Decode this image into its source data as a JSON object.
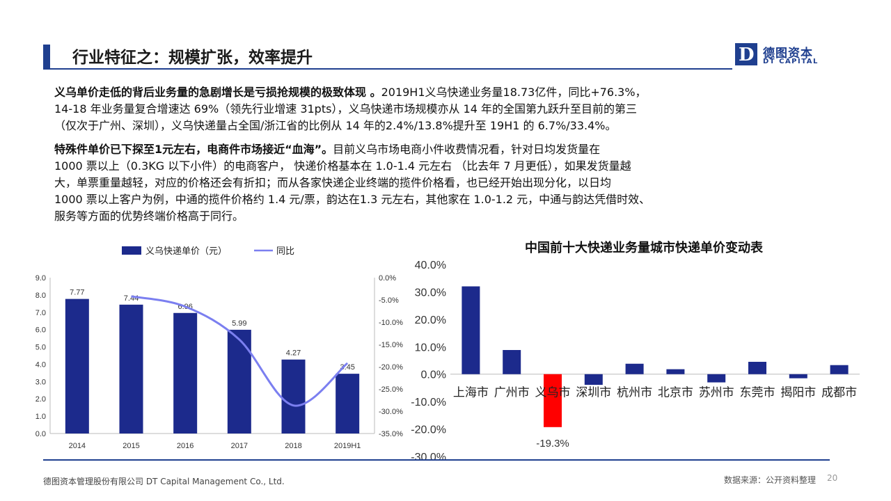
{
  "header": {
    "title": "行业特征之：规模扩张，效率提升",
    "logo_cn": "德图资本",
    "logo_en": "DT CAPITAL",
    "logo_letter": "D"
  },
  "paragraphs": [
    {
      "bold": "义乌单价走低的背后业务量的急剧增长是亏损抢规模的极致体现 。",
      "lines": [
        "2019H1义乌快递业务量18.73亿件，同比+76.3%，",
        "14-18 年业务量复合增速达 69%（领先行业增速 31pts），义乌快递市场规模亦从 14 年的全国第九跃升至目前的第三",
        "（仅次于广州、深圳），义乌快递量占全国/浙江省的比例从 14 年的2.4%/13.8%提升至 19H1 的 6.7%/33.4%。"
      ]
    },
    {
      "bold": "特殊件单价已下探至1元左右，电商件市场接近“血海”。",
      "lines": [
        "目前义乌市场电商小件收费情况看，针对日均发货量在",
        "1000 票以上（0.3KG 以下小件）的电商客户， 快递价格基本在 1.0-1.4 元左右 （比去年 7 月更低），如果发货量越",
        "大，单票重量越轻，对应的价格还会有折扣；而从各家快递企业终端的揽件价格看，也已经开始出现分化，以日均",
        "1000 票以上客户为例，中通的揽件价格约 1.4 元/票，韵达在1.3 元左右，其他家在 1.0-1.2 元，中通与韵达凭借时效、",
        "服务等方面的优势终端价格高于同行。"
      ]
    }
  ],
  "footer": {
    "company": "德图资本管理股份有限公司  DT Capital  Management  Co., Ltd.",
    "source": "数据来源：公开资料整理",
    "page": "20"
  },
  "chart_data": [
    {
      "type": "bar+line",
      "title": "",
      "categories": [
        "2014",
        "2015",
        "2016",
        "2017",
        "2018",
        "2019H1"
      ],
      "series": [
        {
          "name": "义乌快递单价（元）",
          "type": "bar",
          "axis": "left",
          "color": "#1c2a8c",
          "values": [
            7.77,
            7.44,
            6.96,
            5.99,
            4.27,
            3.45
          ],
          "labels": [
            "7.77",
            "7.44",
            "6.96",
            "5.99",
            "4.27",
            "3.45"
          ]
        },
        {
          "name": "同比",
          "type": "line",
          "axis": "right",
          "color": "#7b7ff0",
          "x": [
            "2015",
            "2016",
            "2017",
            "2018",
            "2019H1"
          ],
          "values": [
            -4.2,
            -6.5,
            -13.9,
            -28.7,
            -19.2
          ]
        }
      ],
      "y_left": {
        "min": 0,
        "max": 9,
        "ticks": [
          "0.0",
          "1.0",
          "2.0",
          "3.0",
          "4.0",
          "5.0",
          "6.0",
          "7.0",
          "8.0",
          "9.0"
        ]
      },
      "y_right": {
        "min": -35,
        "max": 0,
        "ticks": [
          "0.0%",
          "-5.0%",
          "-10.0%",
          "-15.0%",
          "-20.0%",
          "-25.0%",
          "-30.0%",
          "-35.0%"
        ]
      },
      "grid": false,
      "legend": "top"
    },
    {
      "type": "bar",
      "title": "中国前十大快递业务量城市快递单价变动表",
      "categories": [
        "上海市",
        "广州市",
        "义乌市",
        "深圳市",
        "杭州市",
        "北京市",
        "苏州市",
        "东莞市",
        "揭阳市",
        "成都市"
      ],
      "values": [
        32.0,
        8.8,
        -19.3,
        -3.9,
        3.8,
        1.8,
        -3.0,
        4.5,
        -1.5,
        3.3
      ],
      "value_label": {
        "index": 2,
        "text": "-19.3%"
      },
      "colors": {
        "positive": "#1c2a8c",
        "highlight": "#ff0000"
      },
      "ylim": [
        -30,
        40
      ],
      "ticks": [
        "40.0%",
        "30.0%",
        "20.0%",
        "10.0%",
        "0.0%",
        "-10.0%",
        "-20.0%",
        "-30.0%"
      ],
      "grid": false
    }
  ]
}
